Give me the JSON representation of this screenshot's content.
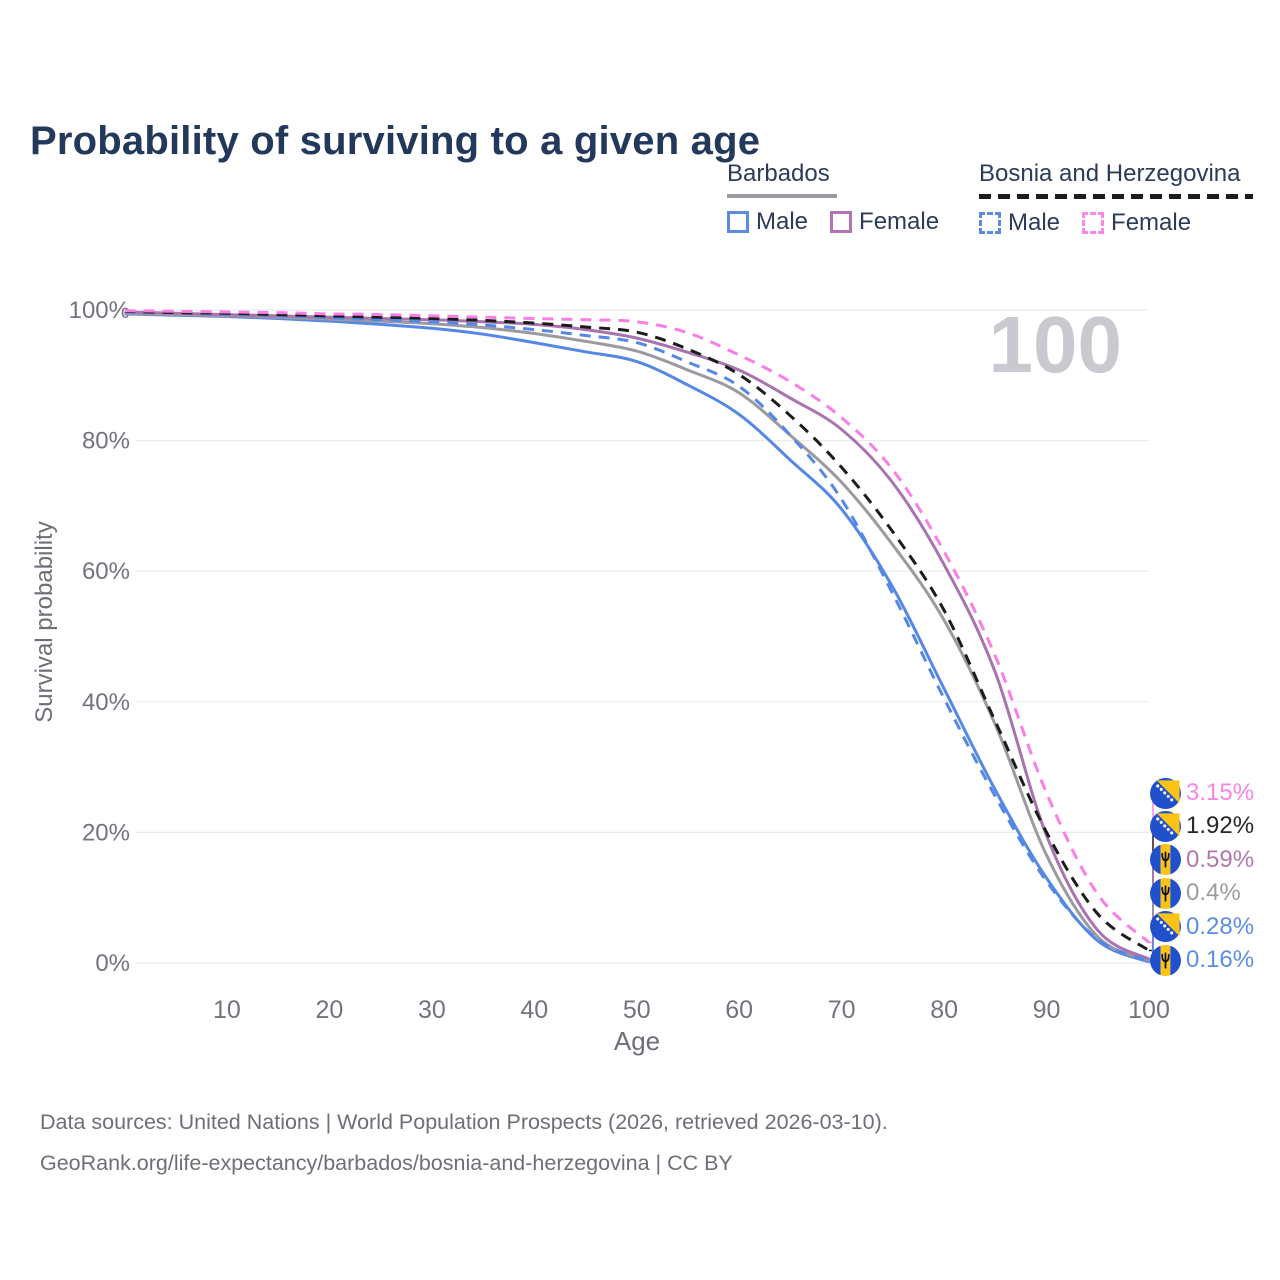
{
  "title": "Probability of surviving to a given age",
  "watermark": "100",
  "legend": {
    "groups": [
      {
        "country": "Barbados",
        "underline_style": "solid",
        "underline_color": "#9a9aa0",
        "items": [
          {
            "label": "Male",
            "color": "#5b8be0",
            "dashed": false
          },
          {
            "label": "Female",
            "color": "#b176b2",
            "dashed": false
          }
        ]
      },
      {
        "country": "Bosnia and Herzegovina",
        "underline_style": "dashed",
        "underline_color": "#1c1c1c",
        "items": [
          {
            "label": "Male",
            "color": "#5b8be0",
            "dashed": true
          },
          {
            "label": "Female",
            "color": "#fb87e7",
            "dashed": true
          }
        ]
      }
    ]
  },
  "chart_data": {
    "type": "line",
    "title": "Probability of surviving to a given age",
    "xlabel": "Age",
    "ylabel": "Survival probability",
    "x_range": [
      0,
      100
    ],
    "y_range": [
      0,
      100
    ],
    "x_ticks": [
      10,
      20,
      30,
      40,
      50,
      60,
      70,
      80,
      90,
      100
    ],
    "y_ticks": [
      0,
      20,
      40,
      60,
      80,
      100
    ],
    "y_tick_suffix": "%",
    "grid": "horizontal",
    "ages": [
      0,
      5,
      10,
      15,
      20,
      25,
      30,
      35,
      40,
      45,
      50,
      55,
      60,
      65,
      70,
      75,
      80,
      85,
      90,
      95,
      100
    ],
    "series": [
      {
        "name": "Bosnia and Herzegovina Female",
        "country": "Bosnia and Herzegovina",
        "sex": "Female",
        "flag": "bih",
        "color": "#fb7ee6",
        "label_color": "#fa85e6",
        "dashed": true,
        "end_label": "3.15%",
        "end_value": 3.15,
        "values": [
          99.9,
          99.8,
          99.7,
          99.6,
          99.4,
          99.3,
          99.1,
          98.9,
          98.7,
          98.5,
          98.2,
          96.5,
          93.1,
          89.0,
          83.5,
          75.5,
          63.0,
          47.0,
          26.0,
          10.5,
          3.15
        ]
      },
      {
        "name": "Bosnia and Herzegovina (both sexes)",
        "country": "Bosnia and Herzegovina",
        "sex": "Both",
        "flag": "bih",
        "color": "#1c1c1c",
        "label_color": "#26262b",
        "dashed": true,
        "end_label": "1.92%",
        "end_value": 1.92,
        "values": [
          99.8,
          99.6,
          99.5,
          99.3,
          99.1,
          98.9,
          98.7,
          98.4,
          98.0,
          97.4,
          96.6,
          94.0,
          90.1,
          83.8,
          75.9,
          66.0,
          54.0,
          37.0,
          20.0,
          7.5,
          1.92
        ]
      },
      {
        "name": "Barbados Female",
        "country": "Barbados",
        "sex": "Female",
        "flag": "bb",
        "color": "#a873ae",
        "label_color": "#b277ad",
        "dashed": false,
        "end_label": "0.59%",
        "end_value": 0.59,
        "values": [
          99.7,
          99.5,
          99.3,
          99.1,
          98.9,
          98.7,
          98.5,
          98.2,
          97.8,
          97.0,
          95.7,
          93.5,
          90.8,
          86.5,
          81.7,
          73.5,
          61.0,
          44.5,
          19.5,
          5.0,
          0.59
        ]
      },
      {
        "name": "Barbados (both sexes)",
        "country": "Barbados",
        "sex": "Both",
        "flag": "bb",
        "color": "#9a9aa0",
        "label_color": "#9b9ba1",
        "dashed": false,
        "end_label": "0.4%",
        "end_value": 0.4,
        "values": [
          99.5,
          99.3,
          99.1,
          98.9,
          98.6,
          98.3,
          97.9,
          97.3,
          96.4,
          95.2,
          93.7,
          90.8,
          87.3,
          80.8,
          73.6,
          64.0,
          52.5,
          36.5,
          16.5,
          4.0,
          0.4
        ]
      },
      {
        "name": "Bosnia and Herzegovina Male",
        "country": "Bosnia and Herzegovina",
        "sex": "Male",
        "flag": "bih",
        "color": "#5588e6",
        "label_color": "#5d8ce3",
        "dashed": true,
        "end_label": "0.28%",
        "end_value": 0.28,
        "values": [
          99.7,
          99.6,
          99.4,
          99.2,
          98.8,
          98.5,
          98.2,
          97.7,
          97.0,
          96.1,
          95.0,
          92.0,
          88.3,
          80.8,
          71.0,
          56.5,
          40.5,
          25.5,
          12.5,
          3.6,
          0.28
        ]
      },
      {
        "name": "Barbados Male",
        "country": "Barbados",
        "sex": "Male",
        "flag": "bb",
        "color": "#5588e6",
        "label_color": "#5d8ce3",
        "dashed": false,
        "end_label": "0.16%",
        "end_value": 0.16,
        "values": [
          99.4,
          99.2,
          99.0,
          98.7,
          98.3,
          97.8,
          97.2,
          96.3,
          95.0,
          93.6,
          92.1,
          88.5,
          84.0,
          77.0,
          69.5,
          57.5,
          42.0,
          26.5,
          13.0,
          3.4,
          0.16
        ]
      }
    ]
  },
  "footer": {
    "line1": "Data sources: United Nations | World Population Prospects (2026, retrieved 2026-03-10).",
    "line2": "GeoRank.org/life-expectancy/barbados/bosnia-and-herzegovina | CC BY"
  }
}
